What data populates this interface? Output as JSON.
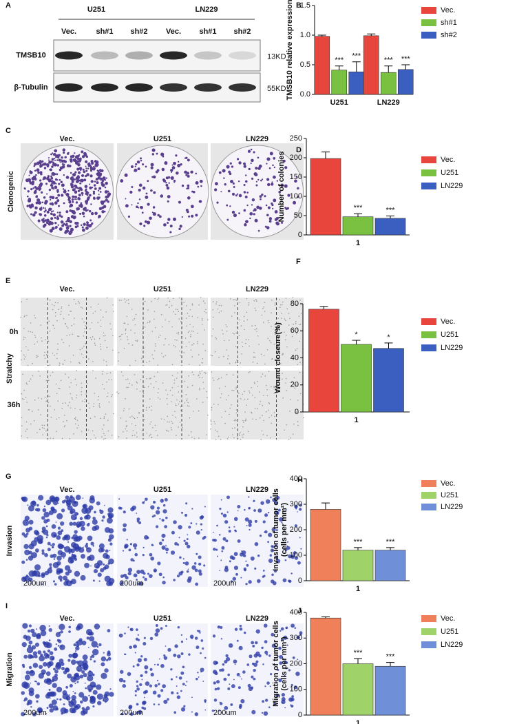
{
  "blot": {
    "panel": "A",
    "cell_lines": [
      "U251",
      "LN229"
    ],
    "lanes": [
      "Vec.",
      "sh#1",
      "sh#2",
      "Vec.",
      "sh#1",
      "sh#2"
    ],
    "rows": [
      "TMSB10",
      "β-Tubulin"
    ],
    "sizes": [
      "13KD",
      "55KD"
    ]
  },
  "clonogenic": {
    "panel": "C",
    "columns": [
      "Vec.",
      "U251",
      "LN229"
    ],
    "label": "Clonogenic"
  },
  "scratch": {
    "panel": "E",
    "columns": [
      "Vec.",
      "U251",
      "LN229"
    ],
    "rows": [
      "0h",
      "36h"
    ],
    "label": "Stratchy"
  },
  "invasion": {
    "panel": "G",
    "columns": [
      "Vec.",
      "U251",
      "LN229"
    ],
    "label": "Invasion",
    "scale_bar": "200um"
  },
  "migration": {
    "panel": "I",
    "columns": [
      "Vec.",
      "U251",
      "LN229"
    ],
    "label": "Migration",
    "scale_bar": "200um"
  },
  "chart_data": [
    {
      "type": "bar",
      "panel": "B",
      "ylabel": "TMSB10 relative expression",
      "categories": [
        "U251",
        "LN229"
      ],
      "ylim": [
        0,
        1.5
      ],
      "yticks": [
        {
          "value": 0,
          "label": "0.0"
        },
        {
          "value": 0.5,
          "label": "0.5"
        },
        {
          "value": 1,
          "label": "1.0"
        },
        {
          "value": 1.5,
          "label": "1.5"
        }
      ],
      "series": [
        {
          "name": "Vec.",
          "color": "#e8453c",
          "values": [
            0.98,
            0.99
          ],
          "errors": [
            0.02,
            0.03
          ],
          "significance": [
            null,
            null
          ]
        },
        {
          "name": "sh#1",
          "color": "#7ac142",
          "values": [
            0.41,
            0.37
          ],
          "errors": [
            0.07,
            0.11
          ],
          "significance": [
            "***",
            "***"
          ]
        },
        {
          "name": "sh#2",
          "color": "#3b5fc0",
          "values": [
            0.38,
            0.42
          ],
          "errors": [
            0.17,
            0.08
          ],
          "significance": [
            "***",
            "***"
          ]
        }
      ]
    },
    {
      "type": "bar",
      "panel": "D",
      "ylabel": "Number of colonies",
      "categories": [
        "1"
      ],
      "ylim": [
        0,
        250
      ],
      "yticks": [
        0,
        50,
        100,
        150,
        200,
        250
      ],
      "series": [
        {
          "name": "Vec.",
          "color": "#e8453c",
          "values": [
            198
          ],
          "errors": [
            17
          ],
          "significance": [
            null
          ]
        },
        {
          "name": "U251",
          "color": "#7ac142",
          "values": [
            47
          ],
          "errors": [
            8
          ],
          "significance": [
            "***"
          ]
        },
        {
          "name": "LN229",
          "color": "#3b5fc0",
          "values": [
            43
          ],
          "errors": [
            6
          ],
          "significance": [
            "***"
          ]
        }
      ]
    },
    {
      "type": "bar",
      "panel": "F",
      "ylabel": "Wound closeure(%)",
      "categories": [
        "1"
      ],
      "ylim": [
        0,
        80
      ],
      "yticks": [
        0,
        20,
        40,
        60,
        80
      ],
      "series": [
        {
          "name": "Vec.",
          "color": "#e8453c",
          "values": [
            76
          ],
          "errors": [
            2
          ],
          "significance": [
            null
          ]
        },
        {
          "name": "U251",
          "color": "#7ac142",
          "values": [
            50
          ],
          "errors": [
            3
          ],
          "significance": [
            "*"
          ]
        },
        {
          "name": "LN229",
          "color": "#3b5fc0",
          "values": [
            47
          ],
          "errors": [
            4
          ],
          "significance": [
            "*"
          ]
        }
      ]
    },
    {
      "type": "bar",
      "panel": "H",
      "ylabel": "Invasion of tumor cells",
      "ylabel2": "(cells per mm²)",
      "categories": [
        "1"
      ],
      "ylim": [
        0,
        400
      ],
      "yticks": [
        0,
        100,
        200,
        300,
        400
      ],
      "series": [
        {
          "name": "Vec.",
          "color": "#f0805a",
          "values": [
            280
          ],
          "errors": [
            25
          ],
          "significance": [
            null
          ]
        },
        {
          "name": "U251",
          "color": "#9fd36a",
          "values": [
            120
          ],
          "errors": [
            10
          ],
          "significance": [
            "***"
          ]
        },
        {
          "name": "LN229",
          "color": "#6f8fd8",
          "values": [
            120
          ],
          "errors": [
            10
          ],
          "significance": [
            "***"
          ]
        }
      ]
    },
    {
      "type": "bar",
      "panel": "J",
      "ylabel": "Migration of tumor cells",
      "ylabel2": "(cells per mm²)",
      "categories": [
        "1"
      ],
      "ylim": [
        0,
        400
      ],
      "yticks": [
        0,
        100,
        200,
        300,
        400
      ],
      "series": [
        {
          "name": "Vec.",
          "color": "#f0805a",
          "values": [
            378
          ],
          "errors": [
            5
          ],
          "significance": [
            null
          ]
        },
        {
          "name": "U251",
          "color": "#9fd36a",
          "values": [
            200
          ],
          "errors": [
            20
          ],
          "significance": [
            "***"
          ]
        },
        {
          "name": "LN229",
          "color": "#6f8fd8",
          "values": [
            190
          ],
          "errors": [
            15
          ],
          "significance": [
            "***"
          ]
        }
      ]
    }
  ]
}
